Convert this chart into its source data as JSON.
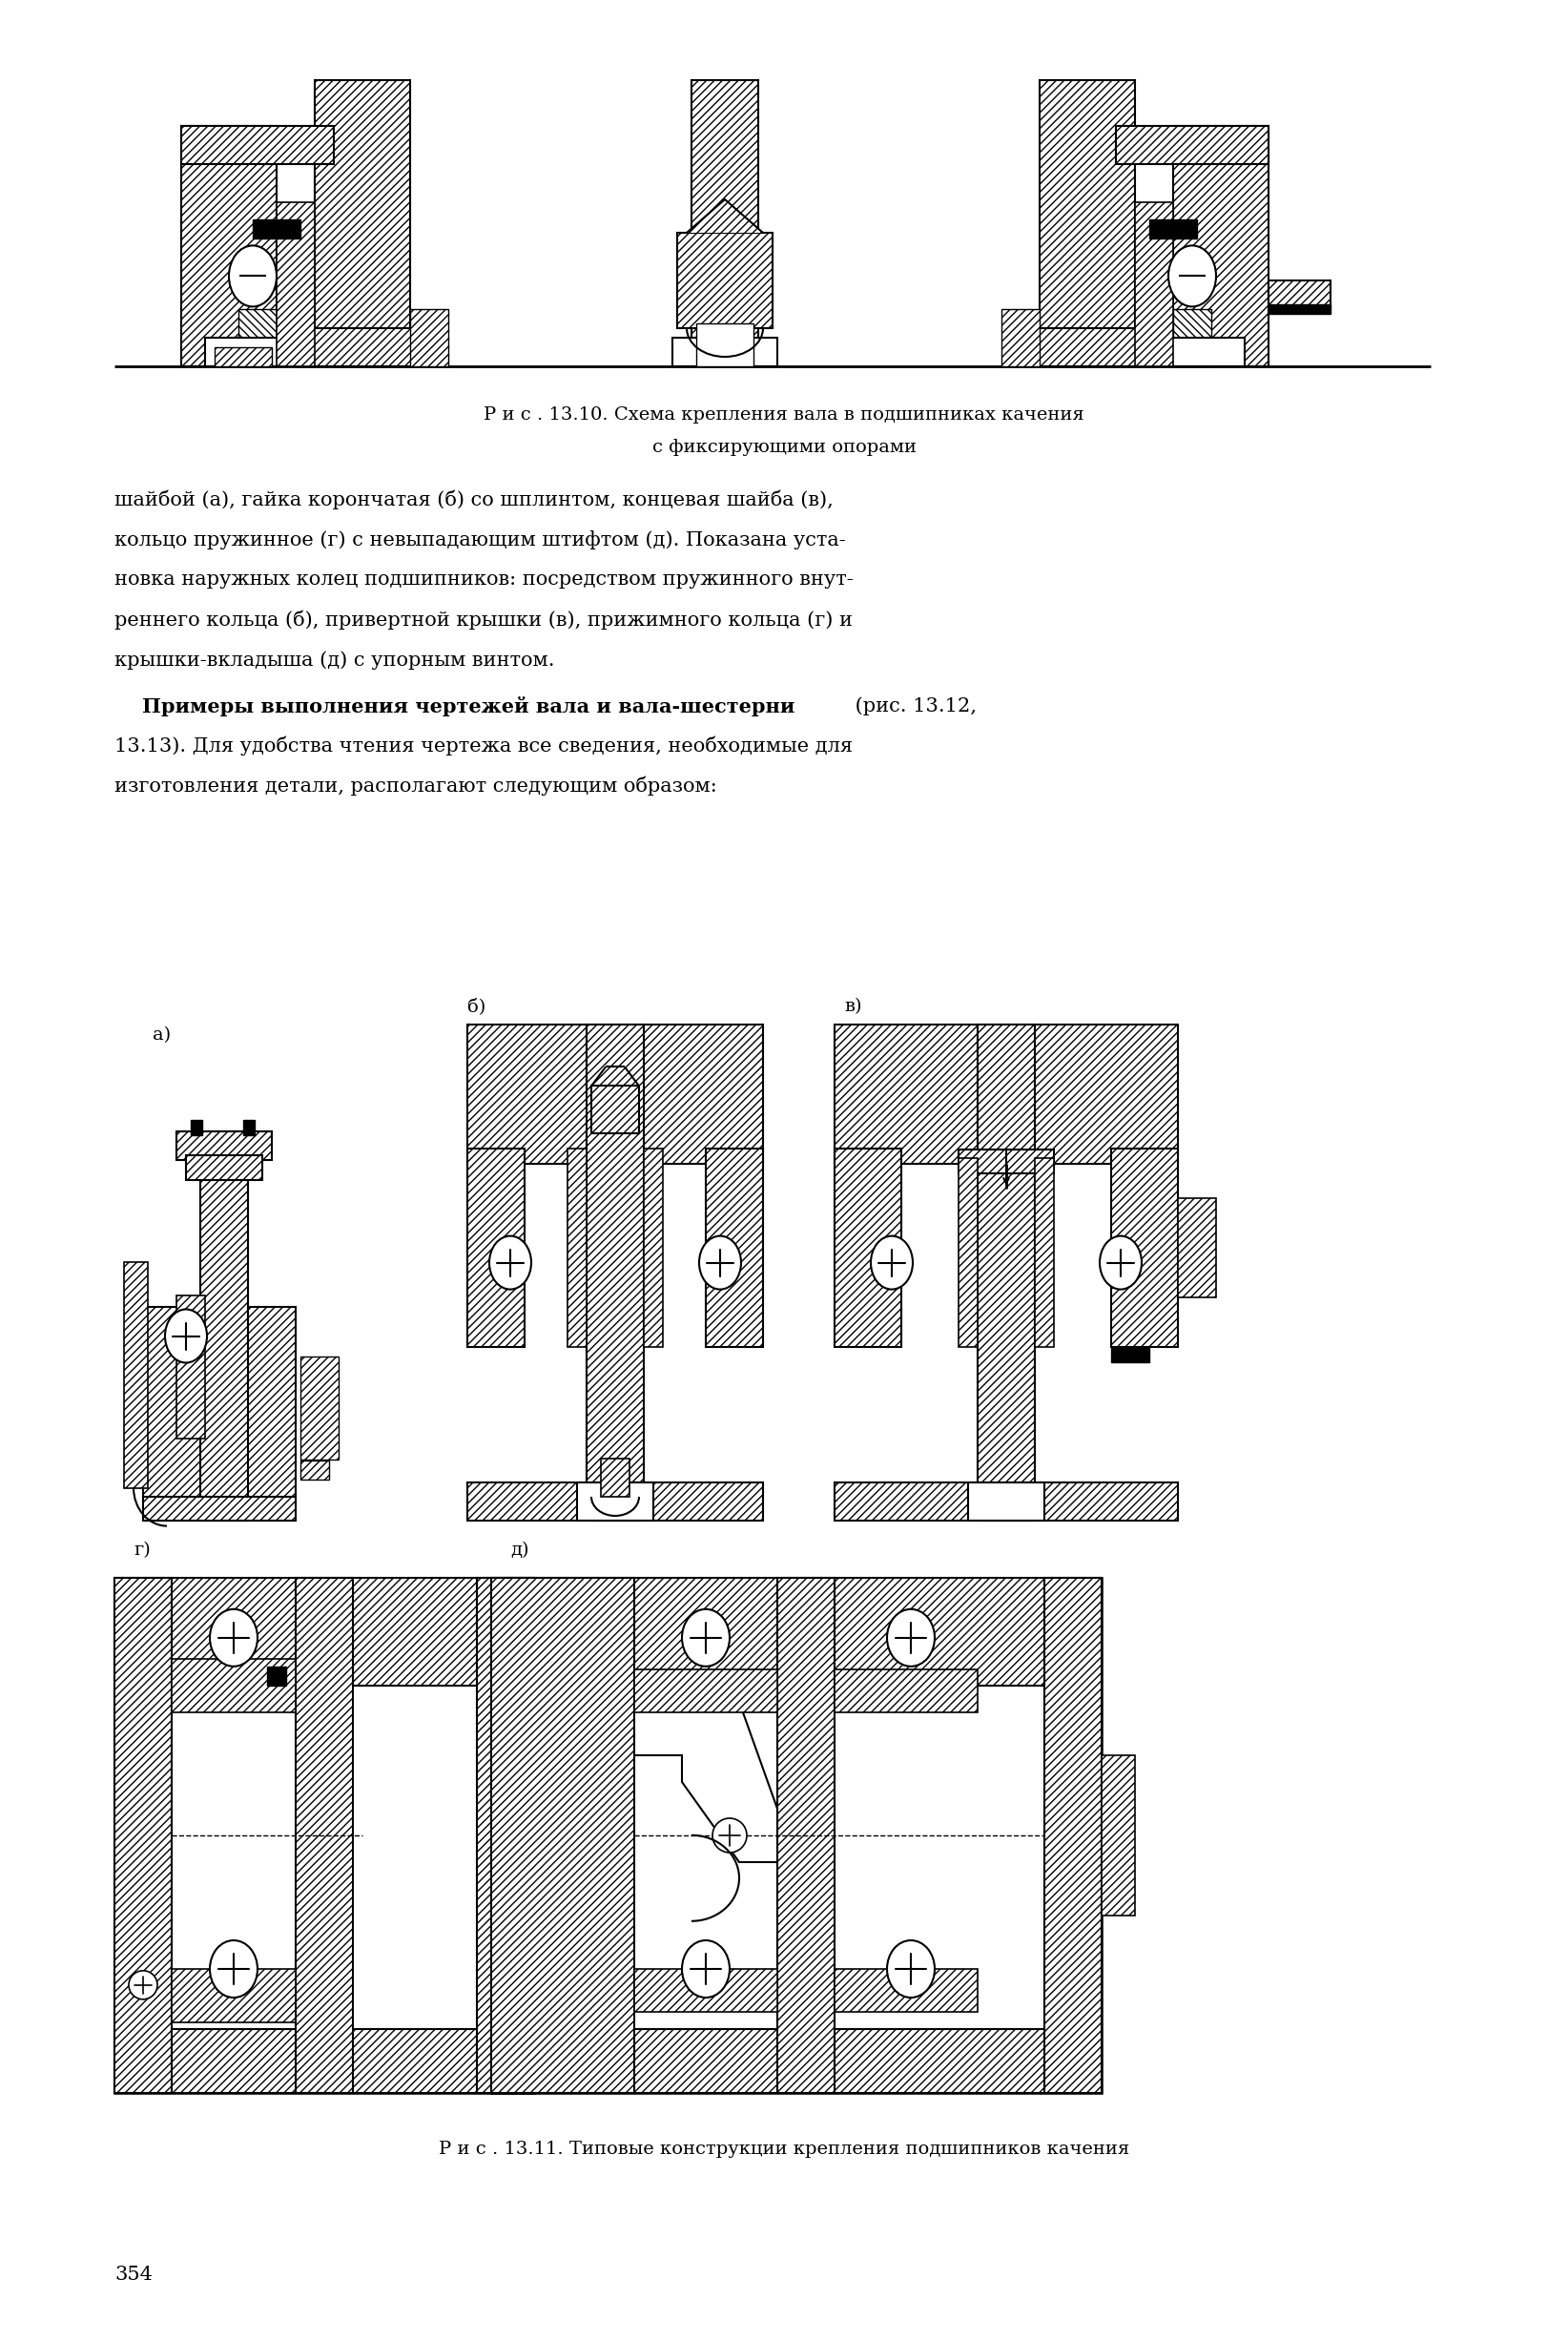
{
  "bg_color": "#ffffff",
  "text_color": "#000000",
  "page_number": "354",
  "fig1_caption_line1": "Р и с . 13.10. Схема крепления вала в подшипниках качения",
  "fig1_caption_line2": "с фиксирующими опорами",
  "fig2_caption": "Р и с . 13.11. Типовые конструкции крепления подшипников качения",
  "body_text_line1": "шайбой (а), гайка корончатая (б) со шплинтом, концевая шайба (в),",
  "body_text_line2": "кольцо пружинное (г) с невыпадающим штифтом (д). Показана уста-",
  "body_text_line3": "новка наружных колец подшипников: посредством пружинного внут-",
  "body_text_line4": "реннего кольца (б), привертной крышки (в), прижимного кольца (г) и",
  "body_text_line5": "крышки-вкладыша (д) с упорным винтом.",
  "bold_text": "    Примеры выполнения чертежей вала и вала-шестерни",
  "bold_suffix": " (рис. 13.12,",
  "body_cont1": "13.13). Для удобства чтения чертежа все сведения, необходимые для",
  "body_cont2": "изготовления детали, располагают следующим образом:",
  "label_a": "а)",
  "label_b": "б)",
  "label_v": "в)",
  "label_g": "г)",
  "label_d": "д)"
}
